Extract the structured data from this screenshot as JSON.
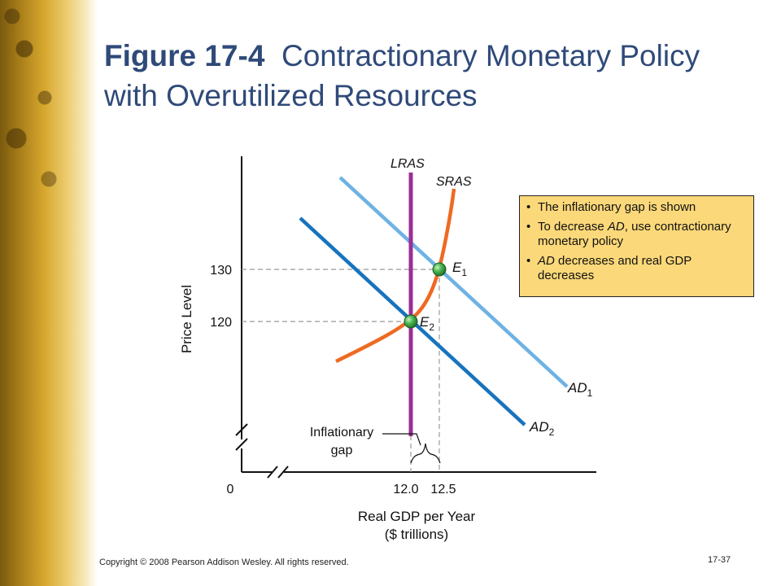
{
  "slide": {
    "title_figure": "Figure 17-4",
    "title_text": "Contractionary Monetary Policy with Overutilized Resources",
    "copyright": "Copyright © 2008 Pearson Addison Wesley. All rights reserved.",
    "page_number": "17-37"
  },
  "info_box": {
    "bullet": "•",
    "items": {
      "b1": "The inflationary gap is shown",
      "b2_pre": "To decrease ",
      "b2_em": "AD",
      "b2_post": ", use contractionary monetary policy",
      "b3_em": "AD",
      "b3_post": " decreases and real GDP decreases"
    }
  },
  "chart_data": {
    "type": "line",
    "xlabel_line1": "Real GDP per Year",
    "xlabel_line2": "($ trillions)",
    "ylabel": "Price Level",
    "origin_label": "0",
    "x_ticks": [
      "12.0",
      "12.5"
    ],
    "y_ticks": [
      "120",
      "130"
    ],
    "curves": {
      "lras": "LRAS",
      "sras": "SRAS",
      "ad1_main": "AD",
      "ad1_sub": "1",
      "ad2_main": "AD",
      "ad2_sub": "2"
    },
    "points": {
      "e1_main": "E",
      "e1_sub": "1",
      "e2_main": "E",
      "e2_sub": "2"
    },
    "equilibria": [
      {
        "x": 12.5,
        "y": 130
      },
      {
        "x": 12.0,
        "y": 120
      }
    ],
    "annotation_line1": "Inflationary",
    "annotation_line2": "gap",
    "colors": {
      "lras": "#9b2f96",
      "sras": "#ee6a22",
      "ad1": "#6fb2e4",
      "ad2": "#1873bd",
      "point": "#3fae49"
    }
  }
}
